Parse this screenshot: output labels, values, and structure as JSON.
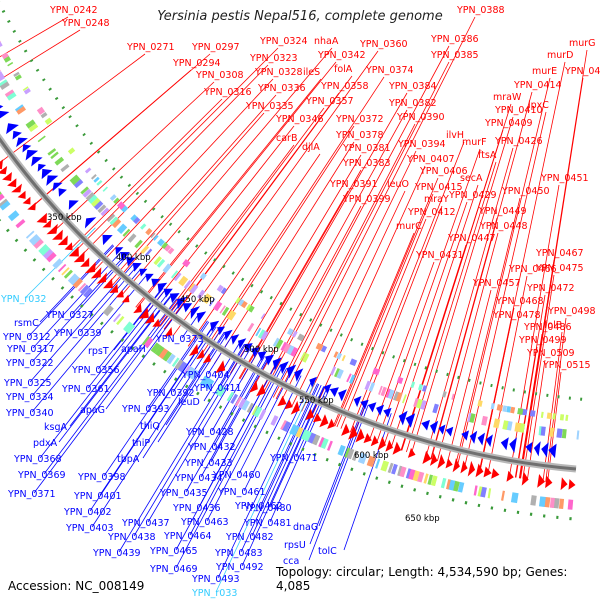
{
  "title": "Yersinia pestis Nepal516, complete genome",
  "accession": "Accession: NC_008149",
  "summary": "Topology: circular; Length: 4,534,590 bp; Genes: 4,085",
  "colors": {
    "forward": "#ff0000",
    "reverse": "#0000ff",
    "rna": "#33ccff",
    "backbone": "#999999",
    "ticks": "#3a9a3a"
  },
  "scale_labels": [
    "350 kbp",
    "400 kbp",
    "450 kbp",
    "500 kbp",
    "550 kbp",
    "600 kbp",
    "650 kbp"
  ],
  "red_labels": [
    "YPN_0242",
    "YPN_0248",
    "YPN_0388",
    "YPN_0386",
    "YPN_0271",
    "YPN_0297",
    "YPN_0324",
    "nhaA",
    "YPN_0360",
    "murG",
    "murD",
    "YPN_0294",
    "YPN_0323",
    "YPN_0342",
    "YPN_0385",
    "murE",
    "YPN_0424",
    "YPN_0308",
    "YPN_0328",
    "ileS",
    "folA",
    "YPN_0374",
    "YPN_0414",
    "YPN_0336",
    "YPN_0358",
    "YPN_0384",
    "mraW",
    "YPN_0316",
    "YPN_0357",
    "YPN_0382",
    "lpxC",
    "YPN_0335",
    "YPN_0410",
    "YPN_0346",
    "YPN_0372",
    "YPN_0390",
    "YPN_0409",
    "carB",
    "YPN_0378",
    "ilvH",
    "YPN_0426",
    "djlA",
    "YPN_0381",
    "YPN_0394",
    "murF",
    "ftsA",
    "YPN_0383",
    "YPN_0407",
    "secA",
    "YPN_0406",
    "YPN_0451",
    "YPN_0391",
    "leuO",
    "YPN_0415",
    "YPN_0450",
    "YPN_0399",
    "mraY",
    "YPN_0429",
    "YPN_0412",
    "YPN_0449",
    "murC",
    "YPN_0448",
    "YPN_0447",
    "YPN_0431",
    "YPN_0467",
    "YPN_0466",
    "YPN_0475",
    "YPN_0457",
    "YPN_0472",
    "YPN_0468",
    "YPN_0478",
    "YPN_0498",
    "YPN_0486",
    "folB",
    "YPN_0499",
    "YPN_0509",
    "YPN_0515"
  ],
  "blue_labels": [
    "YPN_0327",
    "rsmC",
    "YPN_0312",
    "YPN_0339",
    "YPN_0373",
    "YPN_0317",
    "rpsT",
    "apaH",
    "YPN_0322",
    "YPN_0356",
    "YPN_0325",
    "YPN_0361",
    "YPN_0392",
    "YPN_0404",
    "YPN_0411",
    "YPN_0334",
    "YPN_0393",
    "leuD",
    "YPN_0340",
    "apaG",
    "ksgA",
    "thiQ",
    "pdxA",
    "thiP",
    "YPN_0428",
    "YPN_0432",
    "YPN_0368",
    "tbpA",
    "YPN_0433",
    "YPN_0471",
    "YPN_0369",
    "YPN_0398",
    "YPN_0434",
    "YPN_0460",
    "YPN_0371",
    "YPN_0401",
    "YPN_0435",
    "YPN_0461",
    "YPN_0402",
    "YPN_0436",
    "YPN_0462",
    "YPN_0480",
    "YPN_0403",
    "YPN_0437",
    "YPN_0463",
    "YPN_0481",
    "YPN_0438",
    "YPN_0464",
    "YPN_0482",
    "dnaG",
    "YPN_0439",
    "YPN_0465",
    "YPN_0483",
    "rpsU",
    "tolC",
    "YPN_0469",
    "YPN_0492",
    "cca",
    "YPN_0493"
  ],
  "cyan_labels": [
    "YPN_r032",
    "YPN_r033"
  ]
}
